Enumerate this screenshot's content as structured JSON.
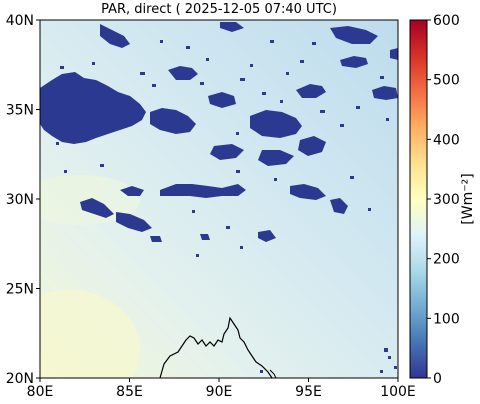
{
  "title": "PAR, direct ( 2025-12-05 07:40 UTC)",
  "colorbar": {
    "label": "[Wm⁻²]",
    "ticks": [
      "0",
      "100",
      "200",
      "300",
      "400",
      "500",
      "600"
    ],
    "range": [
      0,
      600
    ],
    "colormap": "RdYlBu_r",
    "colors": [
      "#313695",
      "#4575b4",
      "#74add1",
      "#abd9e9",
      "#e0f3f8",
      "#ffffbf",
      "#fee090",
      "#fdae61",
      "#f46d43",
      "#d73027",
      "#a50026"
    ]
  },
  "map": {
    "x_ticks": [
      "80E",
      "85E",
      "90E",
      "95E",
      "100E"
    ],
    "y_ticks": [
      "20N",
      "25N",
      "30N",
      "35N",
      "40N"
    ],
    "lon_range": [
      80,
      100
    ],
    "lat_range": [
      20,
      40
    ],
    "background_color": "#cfe6f0",
    "cloud_color": "#2b3990",
    "coastline_color": "#000000"
  },
  "chart_data": {
    "type": "heatmap",
    "title": "PAR, direct ( 2025-12-05 07:40 UTC)",
    "xlabel": "",
    "ylabel": "",
    "x_range": [
      80,
      100
    ],
    "y_range": [
      20,
      40
    ],
    "value_range": [
      0,
      600
    ],
    "value_label": "[Wm⁻²]",
    "approx_clear_sky_value": 220,
    "approx_cloud_value": 0
  }
}
